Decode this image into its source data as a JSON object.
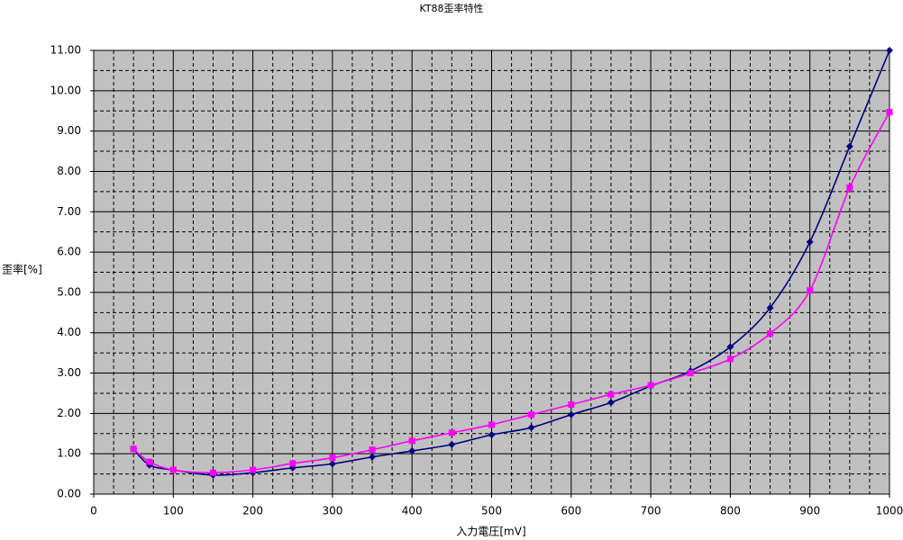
{
  "chart_data": {
    "type": "line",
    "title": "KT88歪率特性",
    "x_label": "入力電圧[mV]",
    "y_label": "歪率[%]",
    "x": [
      50,
      70,
      100,
      150,
      200,
      250,
      300,
      350,
      400,
      450,
      500,
      550,
      600,
      650,
      700,
      750,
      800,
      850,
      900,
      950,
      1000
    ],
    "series": [
      {
        "color": "#000080",
        "marker": "diamond",
        "values": [
          1.12,
          0.72,
          0.6,
          0.47,
          0.53,
          0.65,
          0.75,
          0.92,
          1.07,
          1.23,
          1.47,
          1.65,
          1.97,
          2.27,
          2.68,
          3.05,
          3.65,
          4.62,
          6.25,
          8.62,
          11.0
        ]
      },
      {
        "color": "#ff00ff",
        "marker": "square",
        "values": [
          1.12,
          0.8,
          0.6,
          0.53,
          0.6,
          0.76,
          0.9,
          1.1,
          1.32,
          1.52,
          1.72,
          1.97,
          2.22,
          2.47,
          2.7,
          3.0,
          3.35,
          3.98,
          5.05,
          7.6,
          9.47
        ]
      }
    ],
    "xlim": [
      0,
      1000
    ],
    "xticks": [
      0,
      100,
      200,
      300,
      400,
      500,
      600,
      700,
      800,
      900,
      1000
    ],
    "ylim": [
      0,
      11
    ],
    "yticks": [
      {
        "value": 0,
        "label": "0.00"
      },
      {
        "value": 1,
        "label": "1.00"
      },
      {
        "value": 2,
        "label": "2.00"
      },
      {
        "value": 3,
        "label": "3.00"
      },
      {
        "value": 4,
        "label": "4.00"
      },
      {
        "value": 5,
        "label": "5.00"
      },
      {
        "value": 6,
        "label": "6.00"
      },
      {
        "value": 7,
        "label": "7.00"
      },
      {
        "value": 8,
        "label": "8.00"
      },
      {
        "value": 9,
        "label": "9.00"
      },
      {
        "value": 10,
        "label": "10.00"
      },
      {
        "value": 11,
        "label": "11.00"
      }
    ],
    "minor_xticks": [
      25,
      50,
      75,
      125,
      150,
      175,
      225,
      250,
      275,
      325,
      350,
      375,
      425,
      450,
      475,
      525,
      550,
      575,
      625,
      650,
      675,
      725,
      750,
      775,
      825,
      850,
      875,
      925,
      950,
      975
    ],
    "minor_yticks": [
      0.5,
      1.5,
      2.5,
      3.5,
      4.5,
      5.5,
      6.5,
      7.5,
      8.5,
      9.5,
      10.5
    ],
    "grid": true,
    "background": "#c0c0c0"
  }
}
